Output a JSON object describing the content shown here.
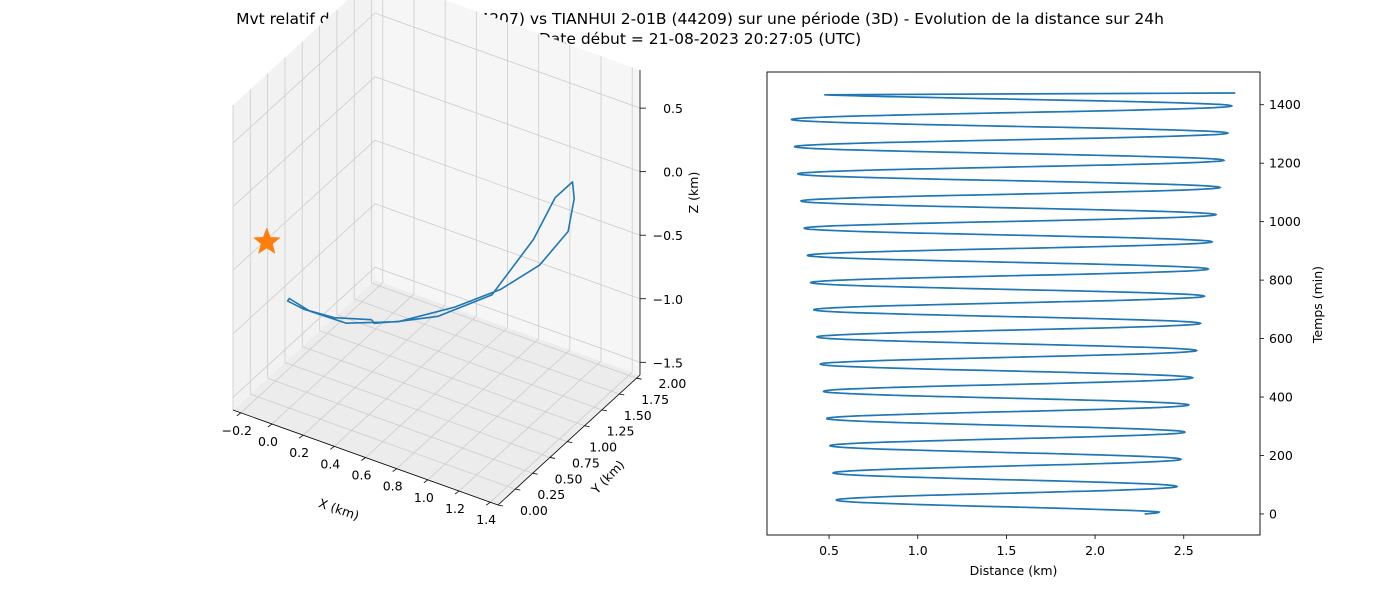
{
  "title": "Mvt relatif de TIANHUI 2-01A (44207) vs TIANHUI 2-01B (44209) sur une période (3D) - Evolution de la distance sur 24h",
  "subtitle": "Date début = 21-08-2023 20:27:05 (UTC)",
  "colors": {
    "line": "#1f77b4",
    "marker": "#ff7f0e",
    "pane": "#f2f2f2",
    "grid": "#cccccc"
  },
  "chart_data": [
    {
      "type": "line",
      "dimensions": "3d",
      "xlabel": "X (km)",
      "ylabel": "Y (km)",
      "zlabel": "Z (km)",
      "xticks": [
        "−0.2",
        "0.0",
        "0.2",
        "0.4",
        "0.6",
        "0.8",
        "1.0",
        "1.2",
        "1.4"
      ],
      "yticks": [
        "0.00",
        "0.25",
        "0.50",
        "0.75",
        "1.00",
        "1.25",
        "1.50",
        "1.75",
        "2.00"
      ],
      "zticks": [
        "0.5",
        "0.0",
        "−0.5",
        "−1.0",
        "−1.5"
      ],
      "xlim": [
        -0.25,
        1.45
      ],
      "ylim": [
        0.0,
        2.05
      ],
      "zlim": [
        -1.6,
        0.8
      ],
      "grid": true,
      "series": [
        {
          "marker": "line",
          "x": [
            0.35,
            0.2,
            0.05,
            -0.1,
            -0.2,
            -0.2,
            -0.1,
            0.1,
            0.35,
            0.6,
            0.85,
            1.1,
            1.25,
            1.35,
            1.35,
            1.3,
            1.1,
            0.8,
            0.55,
            0.38,
            0.35
          ],
          "y": [
            0.65,
            0.45,
            0.35,
            0.45,
            0.7,
            1.0,
            1.3,
            1.6,
            1.85,
            1.95,
            1.95,
            1.8,
            1.55,
            1.3,
            1.05,
            0.85,
            0.7,
            0.6,
            0.6,
            0.62,
            0.65
          ],
          "z": [
            -0.95,
            -0.9,
            -0.85,
            -0.9,
            -1.05,
            -1.3,
            -1.5,
            -1.55,
            -1.45,
            -1.25,
            -0.95,
            -0.5,
            -0.05,
            0.25,
            0.25,
            0.0,
            -0.45,
            -0.7,
            -0.85,
            -0.95,
            -0.95
          ]
        },
        {
          "marker": "star",
          "x": [
            -0.3
          ],
          "y": [
            0.6
          ],
          "z": [
            -0.6
          ]
        }
      ]
    },
    {
      "type": "line",
      "xlabel": "Distance (km)",
      "ylabel": "Temps (min)",
      "ylabel_side": "right",
      "xticks": [
        0.5,
        1.0,
        1.5,
        2.0,
        2.5
      ],
      "yticks": [
        0,
        200,
        400,
        600,
        800,
        1000,
        1200,
        1400
      ],
      "xlim": [
        0.15,
        2.93
      ],
      "ylim": [
        -72,
        1512
      ],
      "grid": false,
      "oscillation": {
        "period_min": 93,
        "first_peak_min": 1,
        "inner_envelope_start": 0.55,
        "inner_envelope_end": 0.27,
        "outer_envelope_start": 2.44,
        "outer_envelope_end": 2.78,
        "start_value": 2.28,
        "end_value": 2.79,
        "duration_min": 1440
      }
    }
  ]
}
